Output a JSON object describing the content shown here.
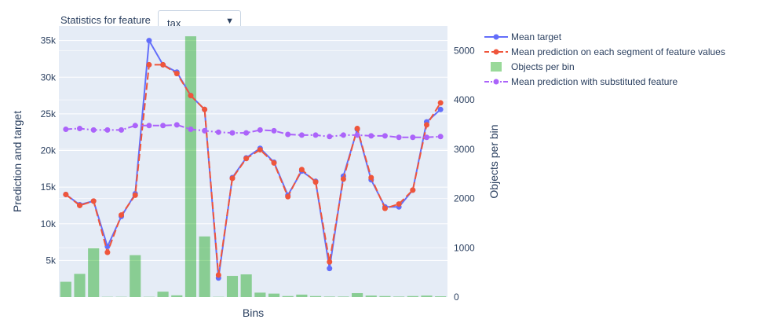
{
  "header": {
    "label": "Statistics for feature",
    "dropdown_value": "tax",
    "dropdown_arrow": "▼"
  },
  "chart_data": {
    "type": "line",
    "xlabel": "Bins",
    "ylabel_left": "Prediction and target",
    "ylabel_right": "Objects per bin",
    "ylim_left": [
      0,
      37000
    ],
    "ylim_right": [
      0,
      5500
    ],
    "y_ticks_left": [
      5000,
      10000,
      15000,
      20000,
      25000,
      30000,
      35000
    ],
    "y_ticklabels_left": [
      "5k",
      "10k",
      "15k",
      "20k",
      "25k",
      "30k",
      "35k"
    ],
    "y_ticks_right": [
      0,
      1000,
      2000,
      3000,
      4000,
      5000
    ],
    "y_ticklabels_right": [
      "0",
      "1000",
      "2000",
      "3000",
      "4000",
      "5000"
    ],
    "bins": 28,
    "series": [
      {
        "name": "Mean target",
        "kind": "line",
        "color": "#636efa",
        "axis": "left",
        "values": [
          14000,
          12600,
          13100,
          6900,
          11000,
          14100,
          35000,
          31700,
          30700,
          27500,
          25600,
          2600,
          16300,
          19000,
          20300,
          18400,
          13900,
          17200,
          15800,
          3900,
          16500,
          22900,
          16000,
          12300,
          12300,
          14600,
          23900,
          25600
        ]
      },
      {
        "name": "Mean prediction on each segment of feature values",
        "kind": "dashed",
        "color": "#ef553b",
        "axis": "left",
        "values": [
          14000,
          12500,
          13100,
          6100,
          11200,
          13900,
          31700,
          31700,
          30500,
          27500,
          25600,
          3000,
          16200,
          18900,
          20100,
          18300,
          13700,
          17400,
          15700,
          4800,
          16100,
          23000,
          16300,
          12100,
          12700,
          14600,
          23500,
          26500
        ]
      },
      {
        "name": "Objects per bin",
        "kind": "bar",
        "color": "#00a000",
        "axis": "right",
        "values": [
          310,
          470,
          990,
          5,
          5,
          850,
          5,
          110,
          35,
          5290,
          1230,
          5,
          430,
          460,
          90,
          70,
          20,
          50,
          20,
          10,
          10,
          80,
          30,
          20,
          10,
          20,
          30,
          15
        ]
      },
      {
        "name": "Mean prediction with substituted feature",
        "kind": "dashdot",
        "color": "#ab63fa",
        "axis": "left",
        "values": [
          22900,
          23000,
          22800,
          22800,
          22800,
          23400,
          23400,
          23400,
          23500,
          22900,
          22700,
          22500,
          22400,
          22400,
          22800,
          22700,
          22200,
          22100,
          22100,
          21900,
          22100,
          22100,
          22000,
          22000,
          21800,
          21800,
          21800,
          21900
        ]
      }
    ],
    "legend_position": "top-right"
  }
}
